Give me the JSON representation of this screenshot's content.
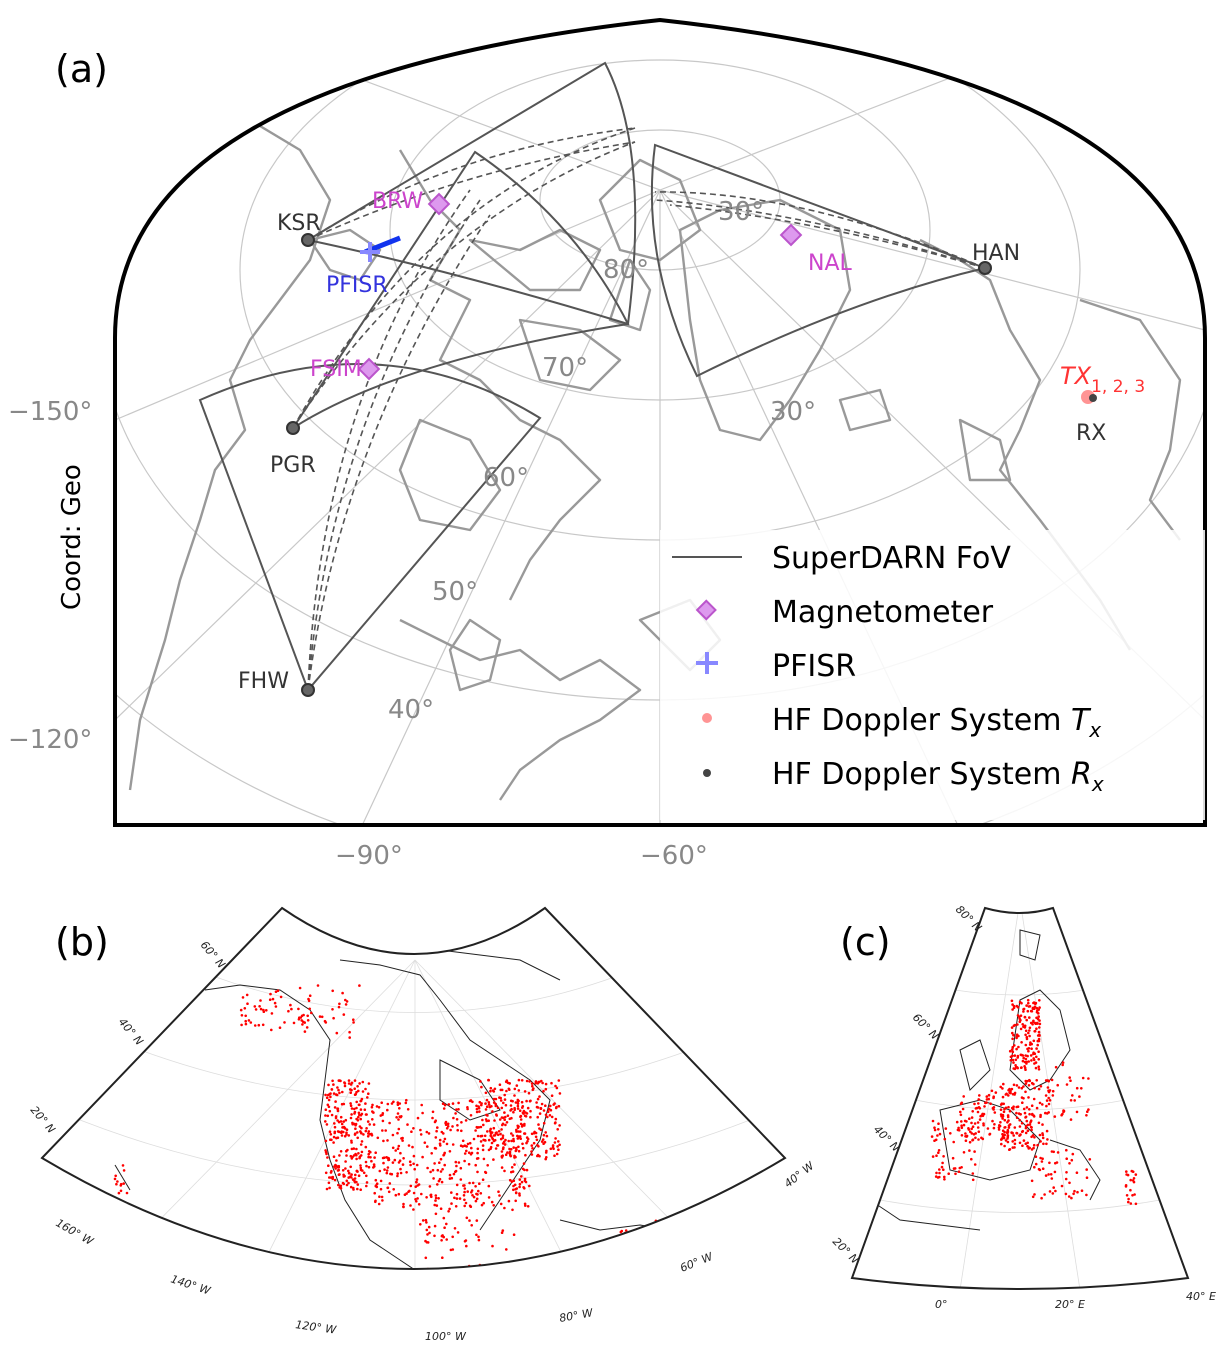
{
  "panels": {
    "a": {
      "label": "(a)",
      "coord_label": "Coord: Geo",
      "lat_labels": [
        "80°",
        "70°",
        "60°",
        "50°",
        "40°",
        "30°",
        "30°"
      ],
      "lon_labels": [
        "−90°",
        "−60°"
      ],
      "left_labels": [
        "−150°",
        "−120°"
      ],
      "radars": [
        "KSR",
        "PGR",
        "FHW",
        "HAN"
      ],
      "magnetometers": [
        "BRW",
        "FSIM",
        "NAL"
      ],
      "pfisr": "PFISR",
      "tx": "TX",
      "tx_sub": "1, 2, 3",
      "rx": "RX",
      "legend": [
        {
          "label": "SuperDARN FoV",
          "color": "#555555"
        },
        {
          "label": "Magnetometer",
          "color": "#cc66dd"
        },
        {
          "label": "PFISR",
          "color": "#8888ff"
        },
        {
          "label": "HF Doppler System ",
          "sub": "x",
          "italic": "T",
          "color": "#ff6666"
        },
        {
          "label": "HF Doppler System ",
          "sub": "x",
          "italic": "R",
          "color": "#444444"
        }
      ]
    },
    "b": {
      "label": "(b)",
      "lat_ticks": [
        "60° N",
        "40° N",
        "20° N"
      ],
      "lon_ticks": [
        "160° W",
        "140° W",
        "120° W",
        "100° W",
        "80° W",
        "60° W",
        "40° W"
      ]
    },
    "c": {
      "label": "(c)",
      "lat_ticks": [
        "80° N",
        "60° N",
        "40° N",
        "20° N"
      ],
      "lon_ticks": [
        "0°",
        "20° E",
        "40° E"
      ]
    }
  },
  "colors": {
    "coast": "#999999",
    "grid": "#bbbbbb",
    "fov": "#555555",
    "dots": "#ff0000"
  }
}
